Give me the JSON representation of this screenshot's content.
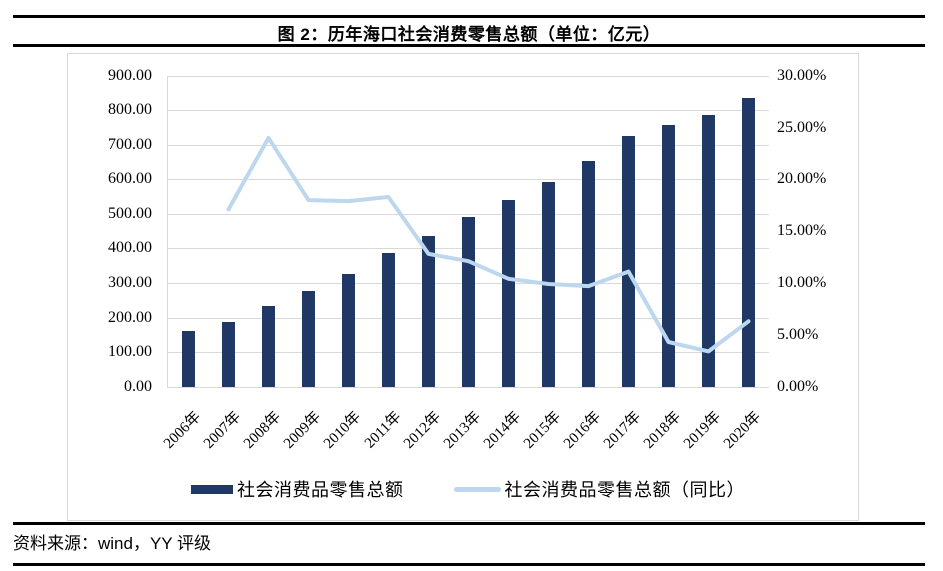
{
  "title": "图 2：历年海口社会消费零售总额（单位：亿元）",
  "footer": {
    "source_label": "资料来源：wind，YY 评级"
  },
  "colors": {
    "bar": "#1f3864",
    "line": "#bdd7ee",
    "grid": "#d9d9d9",
    "rule": "#000000",
    "text": "#000000",
    "chart_border": "#d9d9d9"
  },
  "legend": [
    {
      "label": "社会消费品零售总额",
      "type": "bar"
    },
    {
      "label": "社会消费品零售总额（同比）",
      "type": "line"
    }
  ],
  "chart_data": {
    "type": "bar",
    "title": "图 2：历年海口社会消费零售总额（单位：亿元）",
    "categories": [
      "2006年",
      "2007年",
      "2008年",
      "2009年",
      "2010年",
      "2011年",
      "2012年",
      "2013年",
      "2014年",
      "2015年",
      "2016年",
      "2017年",
      "2018年",
      "2019年",
      "2020年"
    ],
    "series": [
      {
        "name": "社会消费品零售总额",
        "type": "bar",
        "axis": "left",
        "values": [
          160,
          188,
          233,
          276,
          326,
          387,
          436,
          490,
          540,
          593,
          653,
          726,
          757,
          786,
          835
        ]
      },
      {
        "name": "社会消费品零售总额（同比）",
        "type": "line",
        "axis": "right",
        "values": [
          null,
          17.1,
          24.0,
          18.0,
          17.9,
          18.3,
          12.8,
          12.1,
          10.4,
          9.9,
          9.7,
          11.1,
          4.3,
          3.4,
          6.3
        ]
      }
    ],
    "left_axis": {
      "min": 0,
      "max": 900,
      "step": 100,
      "decimals": 2,
      "suffix": ""
    },
    "right_axis": {
      "min": 0,
      "max": 30,
      "step": 5,
      "decimals": 2,
      "suffix": "%"
    },
    "grid": true,
    "legend_position": "bottom"
  }
}
